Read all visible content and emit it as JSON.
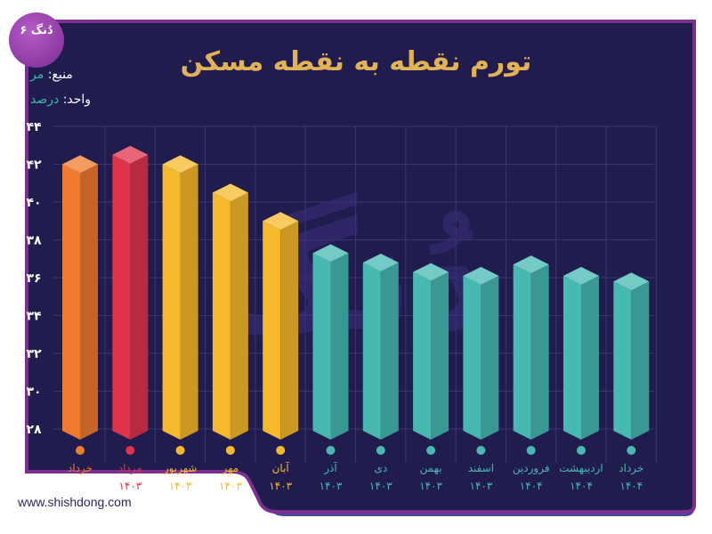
{
  "logo": {
    "text": "۶ دُنگ"
  },
  "title": "تورم نقطه به نقطه مسکن",
  "source": {
    "label": "منبع:",
    "value": "مر"
  },
  "unit": {
    "label": "واحد:",
    "value": "درصد"
  },
  "website": "www.shishdong.com",
  "watermark": "دُنگ",
  "colors": {
    "background": "#211c4e",
    "border": "#7b2f8e",
    "orange": "#f07a2e",
    "red": "#e0334a",
    "yellow": "#f6b92b",
    "teal": "#46b9b1",
    "title": "#e2b257"
  },
  "chart_data": {
    "type": "bar",
    "title": "تورم نقطه به نقطه مسکن",
    "ylabel": "درصد",
    "ylim": [
      28,
      44
    ],
    "yticks": [
      28,
      30,
      32,
      34,
      36,
      38,
      40,
      42,
      44
    ],
    "ytick_labels": [
      "۲۸",
      "۳۰",
      "۳۲",
      "۳۴",
      "۳۶",
      "۳۸",
      "۴۰",
      "۴۲",
      "۴۴"
    ],
    "grid": true,
    "categories": [
      "خرداد",
      "مرداد",
      "شهریور",
      "مهر",
      "آبان",
      "آذر",
      "دی",
      "بهمن",
      "اسفند",
      "فروردین",
      "اردیبهشت",
      "خرداد"
    ],
    "years": [
      "",
      "۱۴۰۳",
      "۱۴۰۳",
      "۱۴۰۳",
      "۱۴۰۳",
      "۱۴۰۳",
      "۱۴۰۳",
      "۱۴۰۳",
      "۱۴۰۳",
      "۱۴۰۴",
      "۱۴۰۴",
      "۱۴۰۴"
    ],
    "values": [
      42.0,
      42.5,
      42.0,
      40.5,
      39.0,
      37.3,
      36.8,
      36.3,
      36.1,
      36.7,
      36.1,
      35.8
    ],
    "bar_colors": [
      "orange",
      "red",
      "yellow",
      "yellow",
      "yellow",
      "teal",
      "teal",
      "teal",
      "teal",
      "teal",
      "teal",
      "teal"
    ]
  }
}
